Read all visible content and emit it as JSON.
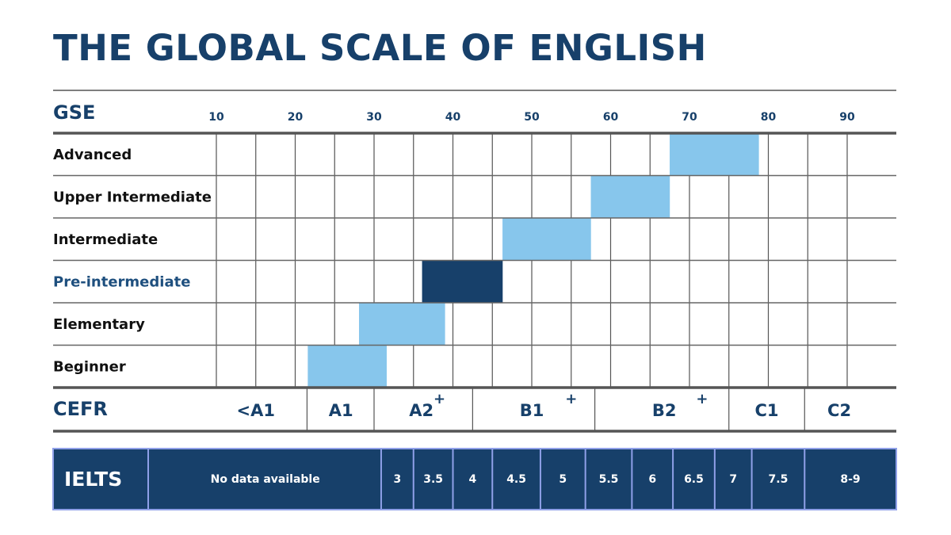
{
  "title": "THE GLOBAL SCALE OF ENGLISH",
  "colors": {
    "navy": "#17406a",
    "light_bar": "#87c6ec",
    "dark_bar": "#17406a",
    "grid": "#555555",
    "ielts_border": "#8fa0e8"
  },
  "chart_data": {
    "type": "bar",
    "orientation": "horizontal-range",
    "axis_label": "GSE",
    "ticks": [
      10,
      20,
      30,
      40,
      50,
      60,
      70,
      80,
      90
    ],
    "xlim": [
      10,
      96
    ],
    "levels": [
      {
        "label": "Advanced",
        "start": 67.5,
        "end": 78.8,
        "highlight": false
      },
      {
        "label": "Upper Intermediate",
        "start": 57.5,
        "end": 67.5,
        "highlight": false
      },
      {
        "label": "Intermediate",
        "start": 46.3,
        "end": 57.5,
        "highlight": false
      },
      {
        "label": "Pre-intermediate",
        "start": 36.1,
        "end": 46.3,
        "highlight": true
      },
      {
        "label": "Elementary",
        "start": 28.1,
        "end": 39.0,
        "highlight": false
      },
      {
        "label": "Beginner",
        "start": 21.6,
        "end": 31.6,
        "highlight": false
      }
    ],
    "cefr": {
      "label": "CEFR",
      "boundaries": [
        10,
        21.5,
        30,
        42.5,
        58,
        75,
        84.6,
        96
      ],
      "bands": [
        {
          "label": "<A1",
          "center": 15
        },
        {
          "label": "A1",
          "center": 25.8
        },
        {
          "label": "A2",
          "center": 36
        },
        {
          "label": "B1",
          "center": 50
        },
        {
          "label": "B2",
          "center": 66.8
        },
        {
          "label": "C1",
          "center": 79.8
        },
        {
          "label": "C2",
          "center": 89
        }
      ],
      "plus_marks": [
        {
          "label": "+",
          "at": 38.3
        },
        {
          "label": "+",
          "at": 55
        },
        {
          "label": "+",
          "at": 71.6
        }
      ]
    },
    "ielts": {
      "label": "IELTS",
      "bands": [
        {
          "label": "No data available",
          "start": 1.5,
          "end": 30.9
        },
        {
          "label": "3",
          "start": 30.9,
          "end": 35
        },
        {
          "label": "3.5",
          "start": 35,
          "end": 40
        },
        {
          "label": "4",
          "start": 40,
          "end": 45
        },
        {
          "label": "4.5",
          "start": 45,
          "end": 51.1
        },
        {
          "label": "5",
          "start": 51.1,
          "end": 56.8
        },
        {
          "label": "5.5",
          "start": 56.8,
          "end": 62.7
        },
        {
          "label": "6",
          "start": 62.7,
          "end": 67.9
        },
        {
          "label": "6.5",
          "start": 67.9,
          "end": 73.2
        },
        {
          "label": "7",
          "start": 73.2,
          "end": 77.9
        },
        {
          "label": "7.5",
          "start": 77.9,
          "end": 84.6
        },
        {
          "label": "8-9",
          "start": 84.6,
          "end": 96.2
        }
      ]
    }
  }
}
